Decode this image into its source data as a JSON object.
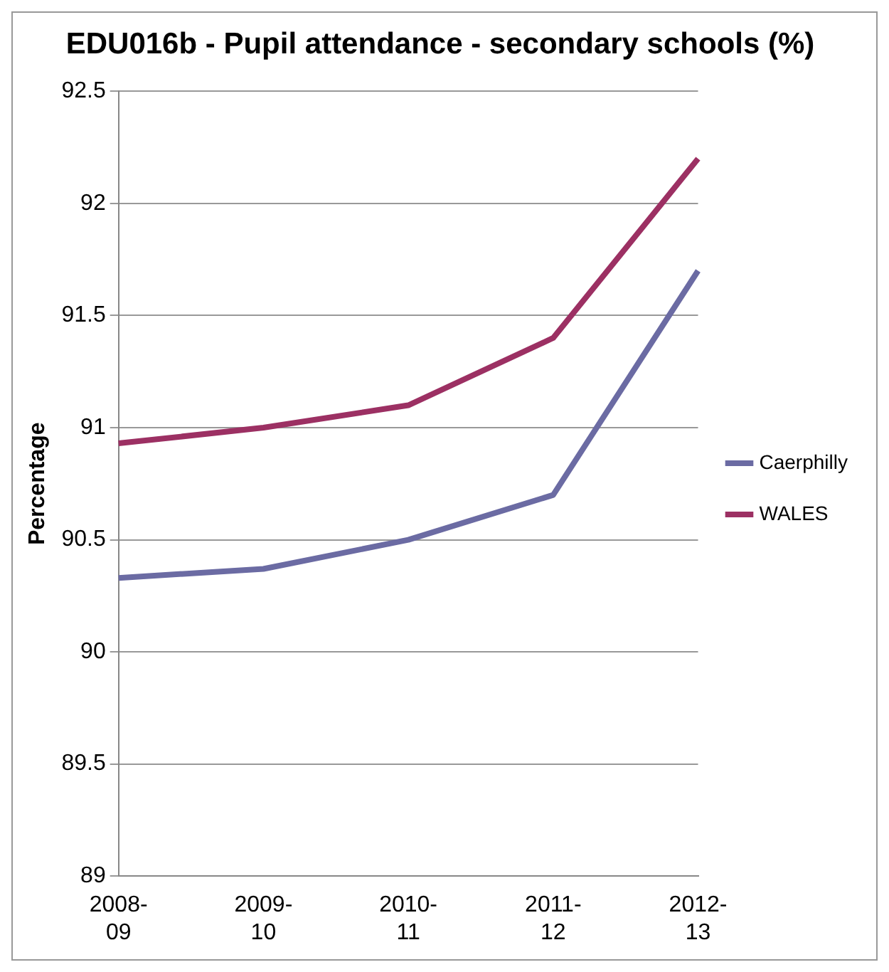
{
  "chart_data": {
    "type": "line",
    "title": "EDU016b - Pupil attendance - secondary schools (%)",
    "ylabel": "Percentage",
    "categories": [
      "2008-09",
      "2009-10",
      "2010-11",
      "2011-12",
      "2012-13"
    ],
    "series": [
      {
        "name": "Caerphilly",
        "color": "#6b6ba3",
        "values": [
          90.33,
          90.37,
          90.5,
          90.7,
          91.7
        ]
      },
      {
        "name": "WALES",
        "color": "#9c3063",
        "values": [
          90.93,
          91.0,
          91.1,
          91.4,
          92.2
        ]
      }
    ],
    "ylim": [
      89,
      92.5
    ],
    "yticks": [
      89,
      89.5,
      90,
      90.5,
      91,
      91.5,
      92,
      92.5
    ],
    "grid": "y",
    "legend": "right",
    "marker": "none",
    "line_style": "solid"
  }
}
